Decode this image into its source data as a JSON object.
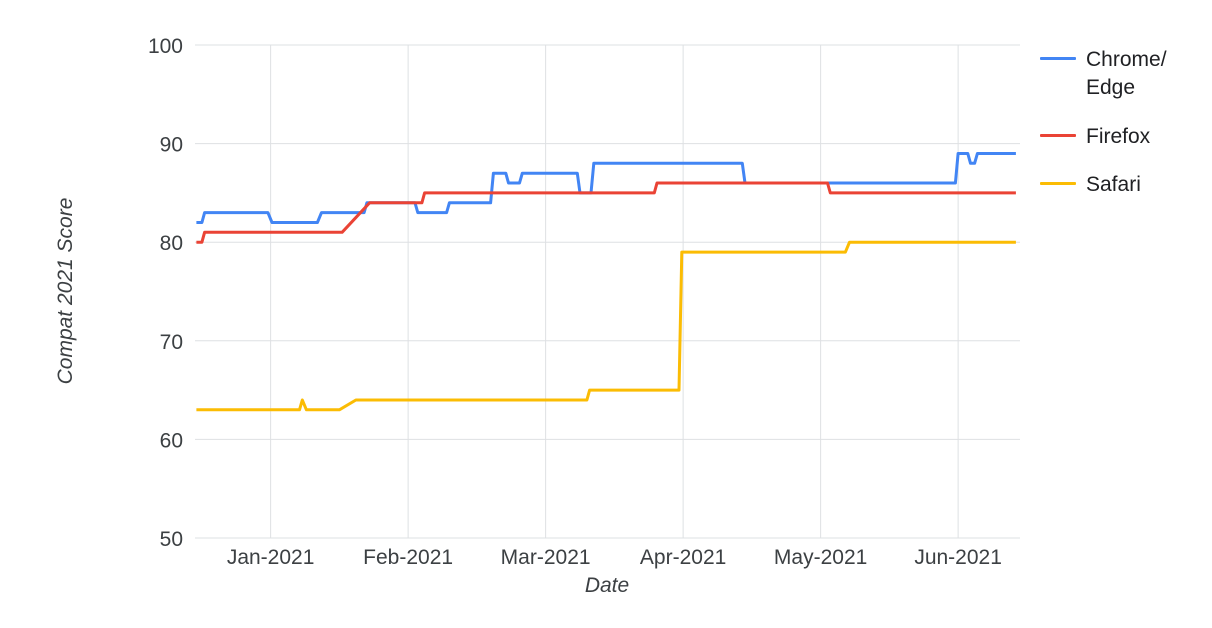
{
  "chart_data": {
    "type": "line",
    "title": "",
    "xlabel": "Date",
    "ylabel": "Compat 2021 Score",
    "x_unit": "months since 2021-01-01",
    "xlim": [
      -0.55,
      5.45
    ],
    "ylim": [
      50,
      100
    ],
    "grid": true,
    "legend_position": "right",
    "style": {
      "background_color": "#ffffff",
      "grid_color": "#dee0e3",
      "text_color": "#3c4043"
    },
    "yticks": [
      50,
      60,
      70,
      80,
      90,
      100
    ],
    "xticks": [
      {
        "value": 0,
        "label": "Jan-2021"
      },
      {
        "value": 1,
        "label": "Feb-2021"
      },
      {
        "value": 2,
        "label": "Mar-2021"
      },
      {
        "value": 3,
        "label": "Apr-2021"
      },
      {
        "value": 4,
        "label": "May-2021"
      },
      {
        "value": 5,
        "label": "Jun-2021"
      }
    ],
    "series": [
      {
        "id": "chrome-edge",
        "name": "Chrome/Edge",
        "legend_lines": [
          "Chrome/",
          "Edge"
        ],
        "color": "#4285F4",
        "points": [
          [
            -0.54,
            82
          ],
          [
            -0.5,
            82
          ],
          [
            -0.48,
            83
          ],
          [
            -0.02,
            83
          ],
          [
            0.01,
            82
          ],
          [
            0.34,
            82
          ],
          [
            0.37,
            83
          ],
          [
            0.68,
            83
          ],
          [
            0.7,
            84
          ],
          [
            1.05,
            84
          ],
          [
            1.07,
            83
          ],
          [
            1.28,
            83
          ],
          [
            1.3,
            84
          ],
          [
            1.6,
            84
          ],
          [
            1.62,
            87
          ],
          [
            1.71,
            87
          ],
          [
            1.73,
            86
          ],
          [
            1.81,
            86
          ],
          [
            1.83,
            87
          ],
          [
            2.23,
            87
          ],
          [
            2.25,
            85
          ],
          [
            2.33,
            85
          ],
          [
            2.35,
            88
          ],
          [
            3.43,
            88
          ],
          [
            3.45,
            86
          ],
          [
            4.98,
            86
          ],
          [
            5.0,
            89
          ],
          [
            5.07,
            89
          ],
          [
            5.09,
            88
          ],
          [
            5.12,
            88
          ],
          [
            5.14,
            89
          ],
          [
            5.42,
            89
          ]
        ]
      },
      {
        "id": "firefox",
        "name": "Firefox",
        "legend_lines": [
          "Firefox"
        ],
        "color": "#EA4335",
        "points": [
          [
            -0.54,
            80
          ],
          [
            -0.5,
            80
          ],
          [
            -0.48,
            81
          ],
          [
            0.52,
            81
          ],
          [
            0.72,
            84
          ],
          [
            1.1,
            84
          ],
          [
            1.12,
            85
          ],
          [
            2.79,
            85
          ],
          [
            2.81,
            86
          ],
          [
            4.05,
            86
          ],
          [
            4.07,
            85
          ],
          [
            5.42,
            85
          ]
        ]
      },
      {
        "id": "safari",
        "name": "Safari",
        "legend_lines": [
          "Safari"
        ],
        "color": "#FBBC04",
        "points": [
          [
            -0.54,
            63
          ],
          [
            0.21,
            63
          ],
          [
            0.23,
            64
          ],
          [
            0.26,
            63
          ],
          [
            0.5,
            63
          ],
          [
            0.62,
            64
          ],
          [
            2.3,
            64
          ],
          [
            2.32,
            65
          ],
          [
            2.97,
            65
          ],
          [
            2.99,
            79
          ],
          [
            4.18,
            79
          ],
          [
            4.21,
            80
          ],
          [
            5.42,
            80
          ]
        ]
      }
    ]
  }
}
